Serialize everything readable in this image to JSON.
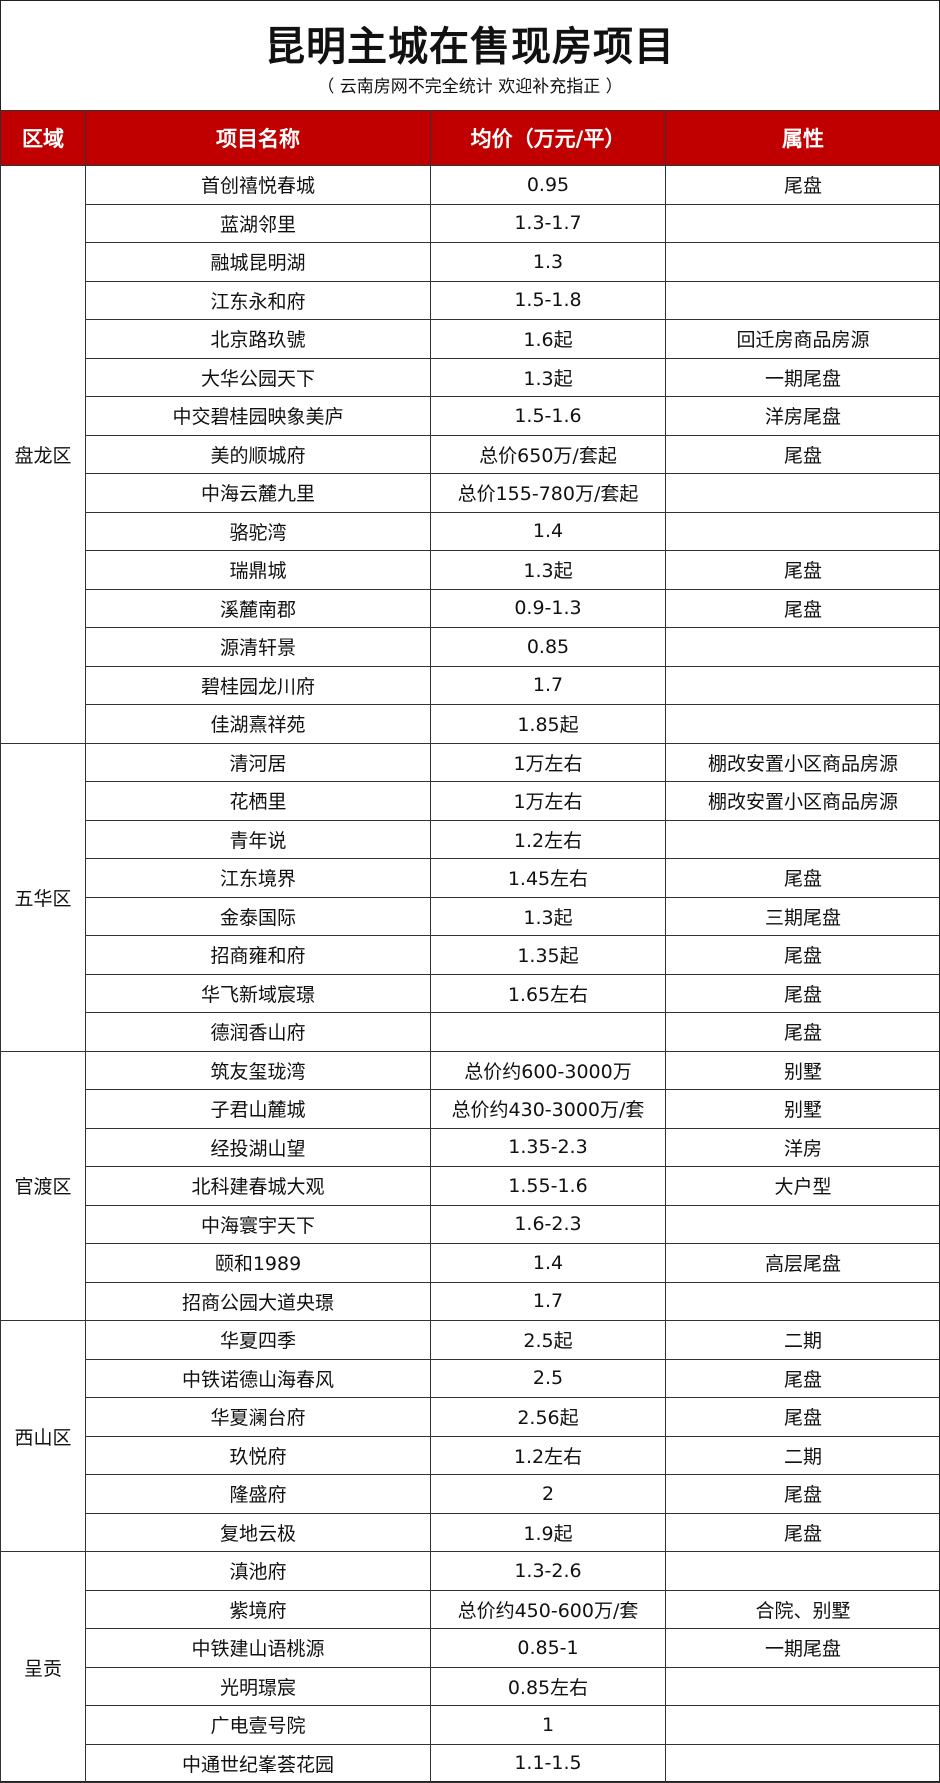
{
  "title": "昆明主城在售现房项目",
  "subtitle": "（ 云南房网不完全统计 欢迎补充指正 ）",
  "colors": {
    "header_bg": "#c00000",
    "header_text": "#ffffff"
  },
  "table": {
    "headers": [
      "区域",
      "项目名称",
      "均价（万元/平）",
      "属性"
    ],
    "groups": [
      {
        "district": "盘龙区",
        "rows": [
          [
            "首创禧悦春城",
            "0.95",
            "尾盘"
          ],
          [
            "蓝湖邻里",
            "1.3-1.7",
            ""
          ],
          [
            "融城昆明湖",
            "1.3",
            ""
          ],
          [
            "江东永和府",
            "1.5-1.8",
            ""
          ],
          [
            "北京路玖號",
            "1.6起",
            "回迁房商品房源"
          ],
          [
            "大华公园天下",
            "1.3起",
            "一期尾盘"
          ],
          [
            "中交碧桂园映象美庐",
            "1.5-1.6",
            "洋房尾盘"
          ],
          [
            "美的顺城府",
            "总价650万/套起",
            "尾盘"
          ],
          [
            "中海云麓九里",
            "总价155-780万/套起",
            ""
          ],
          [
            "骆驼湾",
            "1.4",
            ""
          ],
          [
            "瑞鼎城",
            "1.3起",
            "尾盘"
          ],
          [
            "溪麓南郡",
            "0.9-1.3",
            "尾盘"
          ],
          [
            "源清轩景",
            "0.85",
            ""
          ],
          [
            "碧桂园龙川府",
            "1.7",
            ""
          ],
          [
            "佳湖熹祥苑",
            "1.85起",
            ""
          ]
        ]
      },
      {
        "district": "五华区",
        "rows": [
          [
            "清河居",
            "1万左右",
            "棚改安置小区商品房源"
          ],
          [
            "花栖里",
            "1万左右",
            "棚改安置小区商品房源"
          ],
          [
            "青年说",
            "1.2左右",
            ""
          ],
          [
            "江东境界",
            "1.45左右",
            "尾盘"
          ],
          [
            "金泰国际",
            "1.3起",
            "三期尾盘"
          ],
          [
            "招商雍和府",
            "1.35起",
            "尾盘"
          ],
          [
            "华飞新域宸璟",
            "1.65左右",
            "尾盘"
          ],
          [
            "德润香山府",
            "",
            "尾盘"
          ]
        ]
      },
      {
        "district": "官渡区",
        "rows": [
          [
            "筑友玺珑湾",
            "总价约600-3000万",
            "别墅"
          ],
          [
            "子君山麓城",
            "总价约430-3000万/套",
            "别墅"
          ],
          [
            "经投湖山望",
            "1.35-2.3",
            "洋房"
          ],
          [
            "北科建春城大观",
            "1.55-1.6",
            "大户型"
          ],
          [
            "中海寰宇天下",
            "1.6-2.3",
            ""
          ],
          [
            "颐和1989",
            "1.4",
            "高层尾盘"
          ],
          [
            "招商公园大道央璟",
            "1.7",
            ""
          ]
        ]
      },
      {
        "district": "西山区",
        "rows": [
          [
            "华夏四季",
            "2.5起",
            "二期"
          ],
          [
            "中铁诺德山海春风",
            "2.5",
            "尾盘"
          ],
          [
            "华夏澜台府",
            "2.56起",
            "尾盘"
          ],
          [
            "玖悦府",
            "1.2左右",
            "二期"
          ],
          [
            "隆盛府",
            "2",
            "尾盘"
          ],
          [
            "复地云极",
            "1.9起",
            "尾盘"
          ]
        ]
      },
      {
        "district": "呈贡",
        "rows": [
          [
            "滇池府",
            "1.3-2.6",
            ""
          ],
          [
            "紫境府",
            "总价约450-600万/套",
            "合院、别墅"
          ],
          [
            "中铁建山语桃源",
            "0.85-1",
            "一期尾盘"
          ],
          [
            "光明璟宸",
            "0.85左右",
            ""
          ],
          [
            "广电壹号院",
            "1",
            ""
          ],
          [
            "中通世纪峯荟花园",
            "1.1-1.5",
            ""
          ]
        ]
      }
    ]
  }
}
